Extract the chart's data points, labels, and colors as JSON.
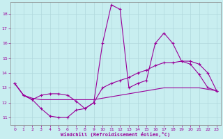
{
  "xlabel": "Windchill (Refroidissement éolien,°C)",
  "xlim": [
    -0.5,
    23.5
  ],
  "ylim": [
    10.5,
    18.8
  ],
  "yticks": [
    11,
    12,
    13,
    14,
    15,
    16,
    17,
    18
  ],
  "xticks": [
    0,
    1,
    2,
    3,
    4,
    5,
    6,
    7,
    8,
    9,
    10,
    11,
    12,
    13,
    14,
    15,
    16,
    17,
    18,
    19,
    20,
    21,
    22,
    23
  ],
  "bg_color": "#c8eef0",
  "line_color": "#990099",
  "grid_color": "#b0d8dc",
  "line1_x": [
    0,
    1,
    2,
    3,
    4,
    5,
    6,
    7,
    8,
    9,
    10,
    11,
    12,
    13,
    14,
    15,
    16,
    17,
    18,
    19,
    20,
    21,
    22,
    23
  ],
  "line1_y": [
    13.3,
    12.5,
    12.2,
    11.6,
    11.1,
    11.0,
    11.0,
    11.5,
    11.6,
    12.0,
    16.0,
    18.6,
    18.3,
    13.0,
    13.3,
    13.5,
    16.0,
    16.7,
    16.0,
    14.8,
    14.6,
    13.9,
    13.0,
    12.8
  ],
  "line2_x": [
    0,
    1,
    2,
    3,
    4,
    5,
    6,
    7,
    8,
    9,
    10,
    11,
    12,
    13,
    14,
    15,
    16,
    17,
    18,
    19,
    20,
    21,
    22,
    23
  ],
  "line2_y": [
    13.3,
    12.5,
    12.2,
    12.5,
    12.6,
    12.6,
    12.5,
    12.1,
    11.6,
    12.0,
    13.0,
    13.3,
    13.5,
    13.7,
    14.0,
    14.2,
    14.5,
    14.7,
    14.7,
    14.8,
    14.8,
    14.6,
    14.0,
    12.8
  ],
  "line3_x": [
    0,
    1,
    2,
    3,
    4,
    5,
    6,
    7,
    8,
    9,
    10,
    11,
    12,
    13,
    14,
    15,
    16,
    17,
    18,
    19,
    20,
    21,
    22,
    23
  ],
  "line3_y": [
    13.3,
    12.5,
    12.3,
    12.2,
    12.2,
    12.2,
    12.2,
    12.2,
    12.2,
    12.2,
    12.3,
    12.4,
    12.5,
    12.6,
    12.7,
    12.8,
    12.9,
    13.0,
    13.0,
    13.0,
    13.0,
    13.0,
    12.9,
    12.8
  ]
}
